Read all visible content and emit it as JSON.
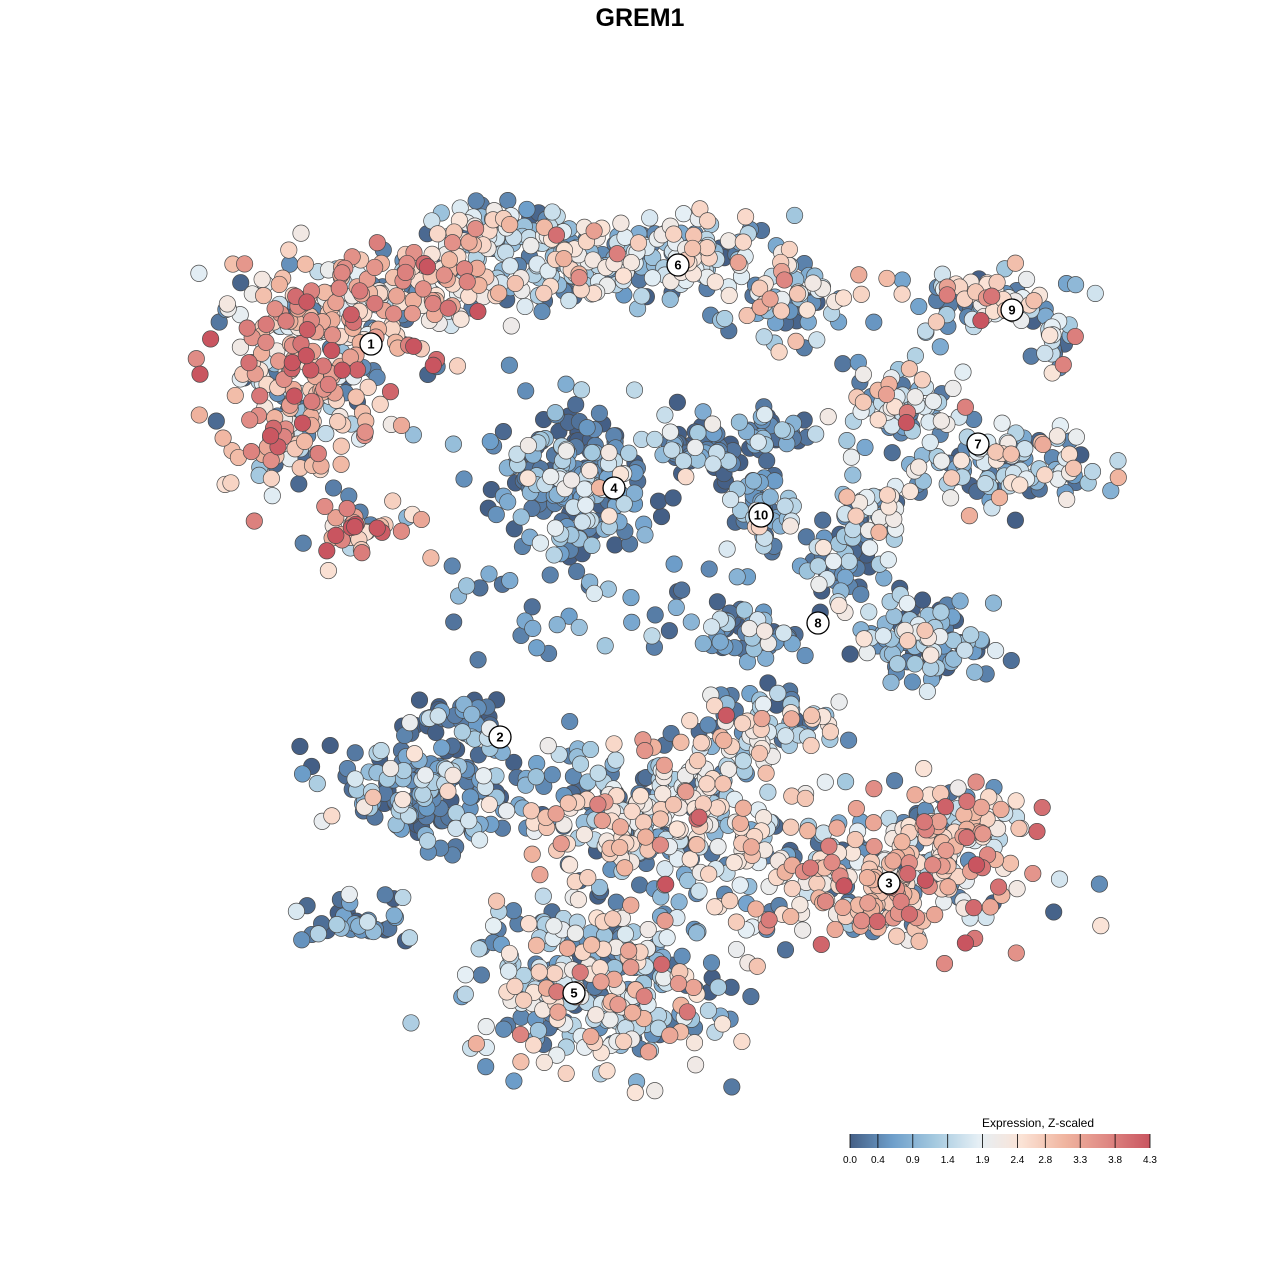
{
  "chart_data": {
    "type": "scatter",
    "title": "GREM1",
    "xlabel": "",
    "ylabel": "",
    "grid": false,
    "legend_placement": "bottom-right",
    "color_scale": {
      "title": "Expression, Z-scaled",
      "min": 0.0,
      "max": 4.3,
      "ticks": [
        "0.0",
        "0.4",
        "0.9",
        "1.4",
        "1.9",
        "2.4",
        "2.8",
        "3.3",
        "3.8",
        "4.3"
      ],
      "colors": [
        "#445f86",
        "#6e9fcb",
        "#a6cae0",
        "#e5eff5",
        "#fbe3d6",
        "#f0b5a0",
        "#df8883",
        "#c95560"
      ]
    },
    "clusters": [
      {
        "label": "1",
        "mean_expression": 2.9
      },
      {
        "label": "2",
        "mean_expression": 0.6
      },
      {
        "label": "3",
        "mean_expression": 2.6
      },
      {
        "label": "4",
        "mean_expression": 0.7
      },
      {
        "label": "5",
        "mean_expression": 1.9
      },
      {
        "label": "6",
        "mean_expression": 1.6
      },
      {
        "label": "7",
        "mean_expression": 1.7
      },
      {
        "label": "8",
        "mean_expression": 0.9
      },
      {
        "label": "9",
        "mean_expression": 1.8
      },
      {
        "label": "10",
        "mean_expression": 0.9
      }
    ]
  }
}
